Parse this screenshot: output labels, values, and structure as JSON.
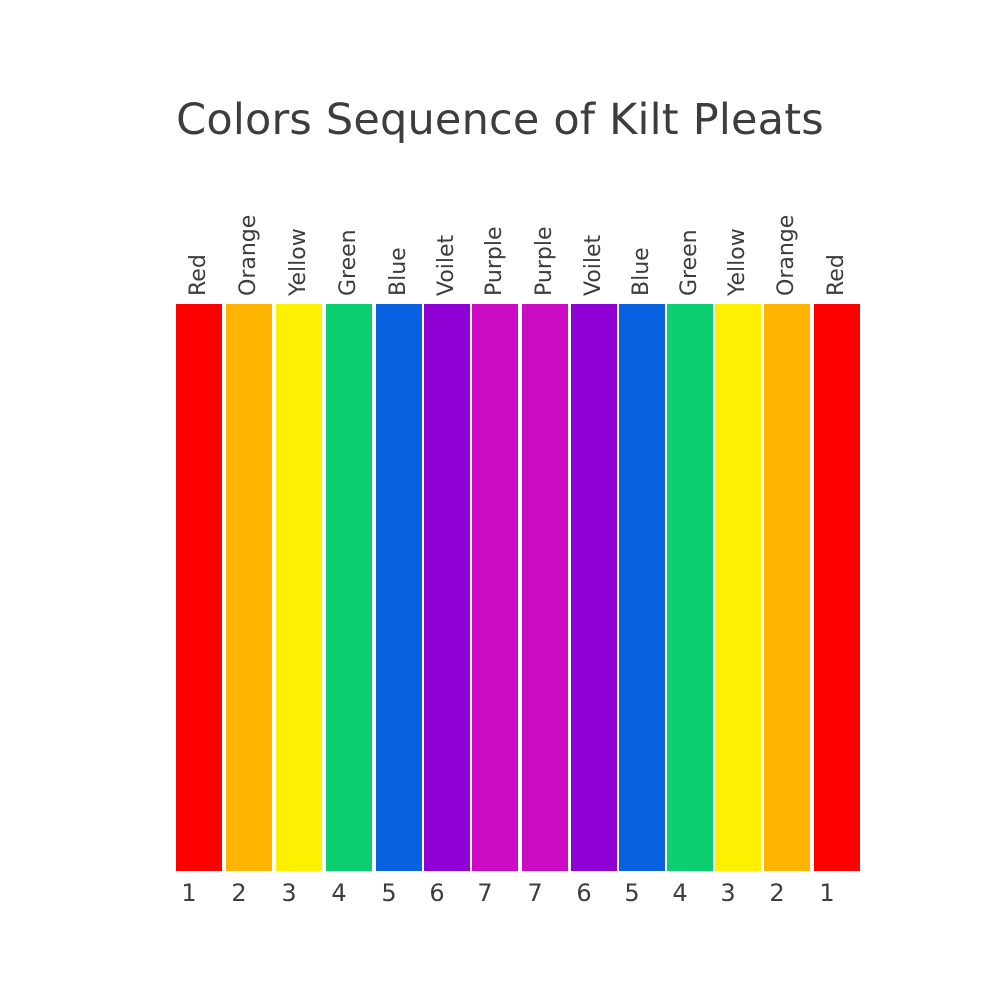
{
  "title": "Colors Sequence of Kilt Pleats",
  "colors": {
    "red": "#ff0000",
    "orange": "#ffb400",
    "yellow": "#ffef00",
    "green": "#0ccf72",
    "blue": "#0761e0",
    "voilet": "#8e00d4",
    "purple": "#cc0cc4"
  },
  "pleats": [
    {
      "label": "Red",
      "number": "1",
      "color": "#ff0000"
    },
    {
      "label": "Orange",
      "number": "2",
      "color": "#ffb400"
    },
    {
      "label": "Yellow",
      "number": "3",
      "color": "#ffef00"
    },
    {
      "label": "Green",
      "number": "4",
      "color": "#0ccf72"
    },
    {
      "label": "Blue",
      "number": "5",
      "color": "#0761e0"
    },
    {
      "label": "Voilet",
      "number": "6",
      "color": "#8e00d4"
    },
    {
      "label": "Purple",
      "number": "7",
      "color": "#cc0cc4"
    },
    {
      "label": "Purple",
      "number": "7",
      "color": "#cc0cc4"
    },
    {
      "label": "Voilet",
      "number": "6",
      "color": "#8e00d4"
    },
    {
      "label": "Blue",
      "number": "5",
      "color": "#0761e0"
    },
    {
      "label": "Green",
      "number": "4",
      "color": "#0ccf72"
    },
    {
      "label": "Yellow",
      "number": "3",
      "color": "#ffef00"
    },
    {
      "label": "Orange",
      "number": "2",
      "color": "#ffb400"
    },
    {
      "label": "Red",
      "number": "1",
      "color": "#ff0000"
    }
  ]
}
